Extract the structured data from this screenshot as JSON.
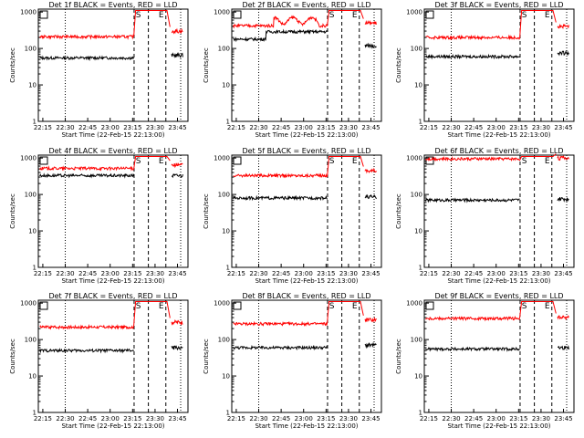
{
  "chart_data": [
    {
      "title": "Det 1f BLACK = Events, RED = LLD",
      "xlabel": "Start Time (22-Feb-15 22:13:00)",
      "ylabel": "Counts/sec",
      "type": "line",
      "x_ticks": [
        "22:15",
        "22:30",
        "22:45",
        "23:00",
        "23:15",
        "23:30",
        "23:45"
      ],
      "y_ticks": [
        "1",
        "10",
        "100",
        "1000"
      ],
      "ylog": true,
      "ylim": [
        1,
        1200
      ],
      "markers": [
        {
          "label": "S",
          "time": "23:17"
        },
        {
          "label": "E",
          "time": "23:36"
        }
      ],
      "series": [
        {
          "color": "#000000",
          "base": 55,
          "hi": null,
          "tail": 65
        },
        {
          "color": "#ff0000",
          "base": 210,
          "hi": 1100,
          "tail": 300
        }
      ]
    },
    {
      "title": "Det 2f BLACK = Events, RED = LLD",
      "xlabel": "Start Time (22-Feb-15 22:13:00)",
      "ylabel": "Counts/sec",
      "type": "line",
      "x_ticks": [
        "22:15",
        "22:30",
        "22:45",
        "23:00",
        "23:15",
        "23:30",
        "23:45"
      ],
      "y_ticks": [
        "1",
        "10",
        "100",
        "1000"
      ],
      "ylog": true,
      "ylim": [
        1,
        1200
      ],
      "markers": [
        {
          "label": "S",
          "time": "23:17"
        },
        {
          "label": "E",
          "time": "23:36"
        }
      ],
      "series": [
        {
          "color": "#000000",
          "base": 180,
          "hi": null,
          "tail": 120
        },
        {
          "color": "#ff0000",
          "base": 420,
          "hi": 1100,
          "tail": 500
        }
      ]
    },
    {
      "title": "Det 3f BLACK = Events, RED = LLD",
      "xlabel": "Start Time (22-Feb-15 22:13:00)",
      "ylabel": "Counts/sec",
      "type": "line",
      "x_ticks": [
        "22:15",
        "22:30",
        "22:45",
        "23:00",
        "23:15",
        "23:30",
        "23:45"
      ],
      "y_ticks": [
        "1",
        "10",
        "100",
        "1000"
      ],
      "ylog": true,
      "ylim": [
        1,
        1200
      ],
      "markers": [
        {
          "label": "S",
          "time": "23:17"
        },
        {
          "label": "E",
          "time": "23:36"
        }
      ],
      "series": [
        {
          "color": "#000000",
          "base": 60,
          "hi": null,
          "tail": 75
        },
        {
          "color": "#ff0000",
          "base": 200,
          "hi": 1100,
          "tail": 400
        }
      ]
    },
    {
      "title": "Det 4f BLACK = Events, RED = LLD",
      "xlabel": "Start Time (22-Feb-15 22:13:00)",
      "ylabel": "Counts/sec",
      "type": "line",
      "x_ticks": [
        "22:15",
        "22:30",
        "22:45",
        "23:00",
        "23:15",
        "23:30",
        "23:45"
      ],
      "y_ticks": [
        "1",
        "10",
        "100",
        "1000"
      ],
      "ylog": true,
      "ylim": [
        1,
        1200
      ],
      "markers": [
        {
          "label": "S",
          "time": "23:17"
        },
        {
          "label": "E",
          "time": "23:36"
        }
      ],
      "series": [
        {
          "color": "#000000",
          "base": 330,
          "hi": null,
          "tail": 330
        },
        {
          "color": "#ff0000",
          "base": 520,
          "hi": 1100,
          "tail": 650
        }
      ]
    },
    {
      "title": "Det 5f BLACK = Events, RED = LLD",
      "xlabel": "Start Time (22-Feb-15 22:13:00)",
      "ylabel": "Counts/sec",
      "type": "line",
      "x_ticks": [
        "22:15",
        "22:30",
        "22:45",
        "23:00",
        "23:15",
        "23:30",
        "23:45"
      ],
      "y_ticks": [
        "1",
        "10",
        "100",
        "1000"
      ],
      "ylog": true,
      "ylim": [
        1,
        1200
      ],
      "markers": [
        {
          "label": "S",
          "time": "23:17"
        },
        {
          "label": "E",
          "time": "23:36"
        }
      ],
      "series": [
        {
          "color": "#000000",
          "base": 80,
          "hi": null,
          "tail": 85
        },
        {
          "color": "#ff0000",
          "base": 330,
          "hi": 1100,
          "tail": 450
        }
      ]
    },
    {
      "title": "Det 6f BLACK = Events, RED = LLD",
      "xlabel": "Start Time (22-Feb-15 22:13:00)",
      "ylabel": "Counts/sec",
      "type": "line",
      "x_ticks": [
        "22:15",
        "22:30",
        "22:45",
        "23:00",
        "23:15",
        "23:30",
        "23:45"
      ],
      "y_ticks": [
        "1",
        "10",
        "100",
        "1000"
      ],
      "ylog": true,
      "ylim": [
        1,
        1200
      ],
      "markers": [
        {
          "label": "S",
          "time": "23:17"
        },
        {
          "label": "E",
          "time": "23:36"
        }
      ],
      "series": [
        {
          "color": "#000000",
          "base": 70,
          "hi": null,
          "tail": 75
        },
        {
          "color": "#ff0000",
          "base": 950,
          "hi": 1100,
          "tail": 1000
        }
      ]
    },
    {
      "title": "Det 7f BLACK = Events, RED = LLD",
      "xlabel": "Start Time (22-Feb-15 22:13:00)",
      "ylabel": "Counts/sec",
      "type": "line",
      "x_ticks": [
        "22:15",
        "22:30",
        "22:45",
        "23:00",
        "23:15",
        "23:30",
        "23:45"
      ],
      "y_ticks": [
        "1",
        "10",
        "100",
        "1000"
      ],
      "ylog": true,
      "ylim": [
        1,
        1200
      ],
      "markers": [
        {
          "label": "S",
          "time": "23:17"
        },
        {
          "label": "E",
          "time": "23:36"
        }
      ],
      "series": [
        {
          "color": "#000000",
          "base": 50,
          "hi": null,
          "tail": 60
        },
        {
          "color": "#ff0000",
          "base": 220,
          "hi": 1100,
          "tail": 300
        }
      ]
    },
    {
      "title": "Det 8f BLACK = Events, RED = LLD",
      "xlabel": "Start Time (22-Feb-15 22:13:00)",
      "ylabel": "Counts/sec",
      "type": "line",
      "x_ticks": [
        "22:15",
        "22:30",
        "22:45",
        "23:00",
        "23:15",
        "23:30",
        "23:45"
      ],
      "y_ticks": [
        "1",
        "10",
        "100",
        "1000"
      ],
      "ylog": true,
      "ylim": [
        1,
        1200
      ],
      "markers": [
        {
          "label": "S",
          "time": "23:17"
        },
        {
          "label": "E",
          "time": "23:36"
        }
      ],
      "series": [
        {
          "color": "#000000",
          "base": 60,
          "hi": null,
          "tail": 70
        },
        {
          "color": "#ff0000",
          "base": 270,
          "hi": 1100,
          "tail": 350
        }
      ]
    },
    {
      "title": "Det 9f BLACK = Events, RED = LLD",
      "xlabel": "Start Time (22-Feb-15 22:13:00)",
      "ylabel": "Counts/sec",
      "type": "line",
      "x_ticks": [
        "22:15",
        "22:30",
        "22:45",
        "23:00",
        "23:15",
        "23:30",
        "23:45"
      ],
      "y_ticks": [
        "1",
        "10",
        "100",
        "1000"
      ],
      "ylog": true,
      "ylim": [
        1,
        1200
      ],
      "markers": [
        {
          "label": "S",
          "time": "23:17"
        },
        {
          "label": "E",
          "time": "23:36"
        }
      ],
      "series": [
        {
          "color": "#000000",
          "base": 55,
          "hi": null,
          "tail": 60
        },
        {
          "color": "#ff0000",
          "base": 380,
          "hi": 1100,
          "tail": 400
        }
      ]
    }
  ]
}
